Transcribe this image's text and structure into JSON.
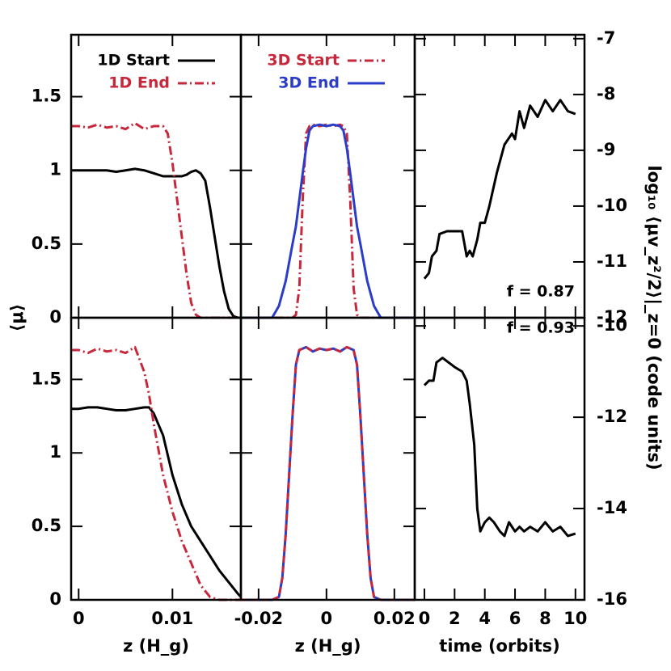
{
  "chart_data": [
    {
      "type": "line",
      "xlim": [
        -0.0008,
        0.0173
      ],
      "ylim": [
        0,
        1.92
      ],
      "xticks": [
        0,
        0.01
      ],
      "yticks": [
        0,
        0.5,
        1,
        1.5
      ],
      "ylabel": "⟨μ⟩",
      "x": [
        -0.0008,
        0,
        0.001,
        0.002,
        0.003,
        0.004,
        0.005,
        0.006,
        0.007,
        0.008,
        0.009,
        0.0095,
        0.01,
        0.0105,
        0.011,
        0.0115,
        0.012,
        0.0125,
        0.013,
        0.0135,
        0.014,
        0.0145,
        0.015,
        0.0155,
        0.016,
        0.0165,
        0.017,
        0.0173
      ],
      "series": [
        {
          "name": "1D Start",
          "color": "#000000",
          "style": "solid",
          "values": [
            1,
            1,
            1,
            1,
            1,
            0.99,
            1,
            1.01,
            1,
            0.98,
            0.96,
            0.96,
            0.96,
            0.96,
            0.96,
            0.97,
            0.99,
            1,
            0.98,
            0.93,
            0.75,
            0.55,
            0.35,
            0.18,
            0.06,
            0.01,
            0,
            0
          ]
        },
        {
          "name": "1D End",
          "color": "#c8283c",
          "style": "dashdot",
          "values": [
            1.3,
            1.3,
            1.29,
            1.31,
            1.29,
            1.3,
            1.28,
            1.32,
            1.28,
            1.3,
            1.3,
            1.25,
            1.05,
            0.8,
            0.55,
            0.3,
            0.1,
            0.02,
            0,
            0,
            0,
            0,
            0,
            0,
            0,
            0,
            0,
            0
          ]
        }
      ]
    },
    {
      "type": "line",
      "xlim": [
        -0.0252,
        0.026
      ],
      "ylim": [
        0,
        1.92
      ],
      "xticks": [
        -0.02,
        0,
        0.02
      ],
      "yticks": [
        0,
        0.5,
        1,
        1.5
      ],
      "x": [
        -0.0252,
        -0.02,
        -0.016,
        -0.014,
        -0.012,
        -0.01,
        -0.009,
        -0.008,
        -0.007,
        -0.006,
        -0.005,
        -0.004,
        -0.002,
        0,
        0.002,
        0.004,
        0.005,
        0.006,
        0.007,
        0.008,
        0.009,
        0.01,
        0.012,
        0.014,
        0.016,
        0.02,
        0.026
      ],
      "series": [
        {
          "name": "3D Start",
          "color": "#c8283c",
          "style": "dashdot",
          "values": [
            0,
            0,
            0,
            0,
            0,
            0,
            0.02,
            0.2,
            0.8,
            1.25,
            1.3,
            1.31,
            1.3,
            1.31,
            1.3,
            1.31,
            1.3,
            1.25,
            0.8,
            0.2,
            0.02,
            0,
            0,
            0,
            0,
            0,
            0
          ]
        },
        {
          "name": "3D End",
          "color": "#2b3dc8",
          "style": "solid",
          "values": [
            0,
            0,
            0,
            0.08,
            0.25,
            0.5,
            0.62,
            0.8,
            0.98,
            1.15,
            1.27,
            1.3,
            1.31,
            1.3,
            1.31,
            1.3,
            1.27,
            1.15,
            0.98,
            0.8,
            0.62,
            0.5,
            0.25,
            0.08,
            0,
            0,
            0
          ]
        }
      ]
    },
    {
      "type": "line",
      "xlim": [
        -0.64,
        10.6
      ],
      "ylim": [
        -12,
        -6.93
      ],
      "xticks": [
        0,
        2,
        4,
        6,
        8,
        10
      ],
      "yticks": [
        -12,
        -11,
        -10,
        -9,
        -8,
        -7
      ],
      "ylabel": "log₁₀ ⟨μv_z²/2⟩|_z=0 (code units)",
      "annotation": "f = 0.87",
      "x": [
        0,
        0.3,
        0.5,
        0.8,
        1,
        1.5,
        2,
        2.5,
        2.8,
        3,
        3.2,
        3.5,
        3.7,
        4,
        4.3,
        4.8,
        5.3,
        5.8,
        6,
        6.3,
        6.6,
        7,
        7.5,
        8,
        8.5,
        9,
        9.5,
        10
      ],
      "series": [
        {
          "color": "#000000",
          "style": "solid",
          "values": [
            -11.3,
            -11.2,
            -10.9,
            -10.8,
            -10.5,
            -10.45,
            -10.45,
            -10.45,
            -10.9,
            -10.8,
            -10.9,
            -10.6,
            -10.3,
            -10.3,
            -10,
            -9.4,
            -8.9,
            -8.7,
            -8.8,
            -8.3,
            -8.6,
            -8.2,
            -8.4,
            -8.1,
            -8.3,
            -8.1,
            -8.3,
            -8.35
          ]
        }
      ]
    },
    {
      "type": "line",
      "xlim": [
        -0.0008,
        0.0173
      ],
      "ylim": [
        0,
        1.92
      ],
      "xticks": [
        0,
        0.01
      ],
      "yticks": [
        0,
        0.5,
        1,
        1.5
      ],
      "xlabel": "z (H_g)",
      "x": [
        -0.0008,
        0,
        0.001,
        0.002,
        0.003,
        0.004,
        0.005,
        0.006,
        0.007,
        0.0075,
        0.008,
        0.009,
        0.01,
        0.011,
        0.012,
        0.013,
        0.014,
        0.015,
        0.016,
        0.017,
        0.0173
      ],
      "series": [
        {
          "color": "#000000",
          "style": "solid",
          "values": [
            1.3,
            1.3,
            1.31,
            1.31,
            1.3,
            1.29,
            1.29,
            1.3,
            1.31,
            1.31,
            1.27,
            1.12,
            0.85,
            0.65,
            0.5,
            0.4,
            0.3,
            0.2,
            0.12,
            0.04,
            0.02
          ]
        },
        {
          "color": "#c8283c",
          "style": "dashdot",
          "values": [
            1.7,
            1.7,
            1.68,
            1.71,
            1.69,
            1.7,
            1.68,
            1.72,
            1.55,
            1.4,
            1.2,
            0.85,
            0.6,
            0.4,
            0.25,
            0.1,
            0.02,
            0,
            0,
            0,
            0
          ]
        }
      ]
    },
    {
      "type": "line",
      "xlim": [
        -0.0252,
        0.026
      ],
      "ylim": [
        0,
        1.92
      ],
      "xticks": [
        -0.02,
        0,
        0.02
      ],
      "yticks": [
        0,
        0.5,
        1,
        1.5
      ],
      "xlabel": "z (H_g)",
      "x": [
        -0.0252,
        -0.016,
        -0.014,
        -0.013,
        -0.012,
        -0.011,
        -0.01,
        -0.009,
        -0.008,
        -0.006,
        -0.004,
        -0.002,
        0,
        0.002,
        0.004,
        0.006,
        0.008,
        0.009,
        0.01,
        0.011,
        0.012,
        0.013,
        0.014,
        0.016,
        0.026
      ],
      "series": [
        {
          "color": "#2b3dc8",
          "style": "solid",
          "values": [
            0,
            0,
            0.02,
            0.15,
            0.45,
            0.85,
            1.25,
            1.6,
            1.7,
            1.72,
            1.69,
            1.71,
            1.7,
            1.71,
            1.69,
            1.72,
            1.7,
            1.6,
            1.25,
            0.85,
            0.45,
            0.15,
            0.02,
            0,
            0
          ]
        },
        {
          "color": "#c8283c",
          "style": "dashed",
          "values": [
            0,
            0,
            0.02,
            0.15,
            0.45,
            0.85,
            1.25,
            1.6,
            1.7,
            1.72,
            1.69,
            1.71,
            1.7,
            1.71,
            1.69,
            1.72,
            1.7,
            1.6,
            1.25,
            0.85,
            0.45,
            0.15,
            0.02,
            0,
            0
          ]
        }
      ]
    },
    {
      "type": "line",
      "xlim": [
        -0.64,
        10.6
      ],
      "ylim": [
        -16,
        -9.82
      ],
      "xticks": [
        0,
        2,
        4,
        6,
        8,
        10
      ],
      "yticks": [
        -16,
        -14,
        -12,
        -10
      ],
      "xlabel": "time (orbits)",
      "annotation": "f = 0.93",
      "x": [
        0,
        0.3,
        0.6,
        0.8,
        1.2,
        1.6,
        2,
        2.5,
        2.8,
        3,
        3.3,
        3.5,
        3.7,
        4,
        4.3,
        4.6,
        5,
        5.3,
        5.6,
        6,
        6.3,
        6.6,
        7,
        7.5,
        8,
        8.5,
        9,
        9.5,
        10
      ],
      "series": [
        {
          "color": "#000000",
          "style": "solid",
          "values": [
            -11.3,
            -11.2,
            -11.2,
            -10.8,
            -10.7,
            -10.8,
            -10.9,
            -11,
            -11.2,
            -11.7,
            -12.6,
            -14,
            -14.5,
            -14.3,
            -14.2,
            -14.3,
            -14.5,
            -14.6,
            -14.3,
            -14.5,
            -14.4,
            -14.5,
            -14.4,
            -14.5,
            -14.3,
            -14.5,
            -14.4,
            -14.6,
            -14.55
          ]
        }
      ]
    }
  ]
}
